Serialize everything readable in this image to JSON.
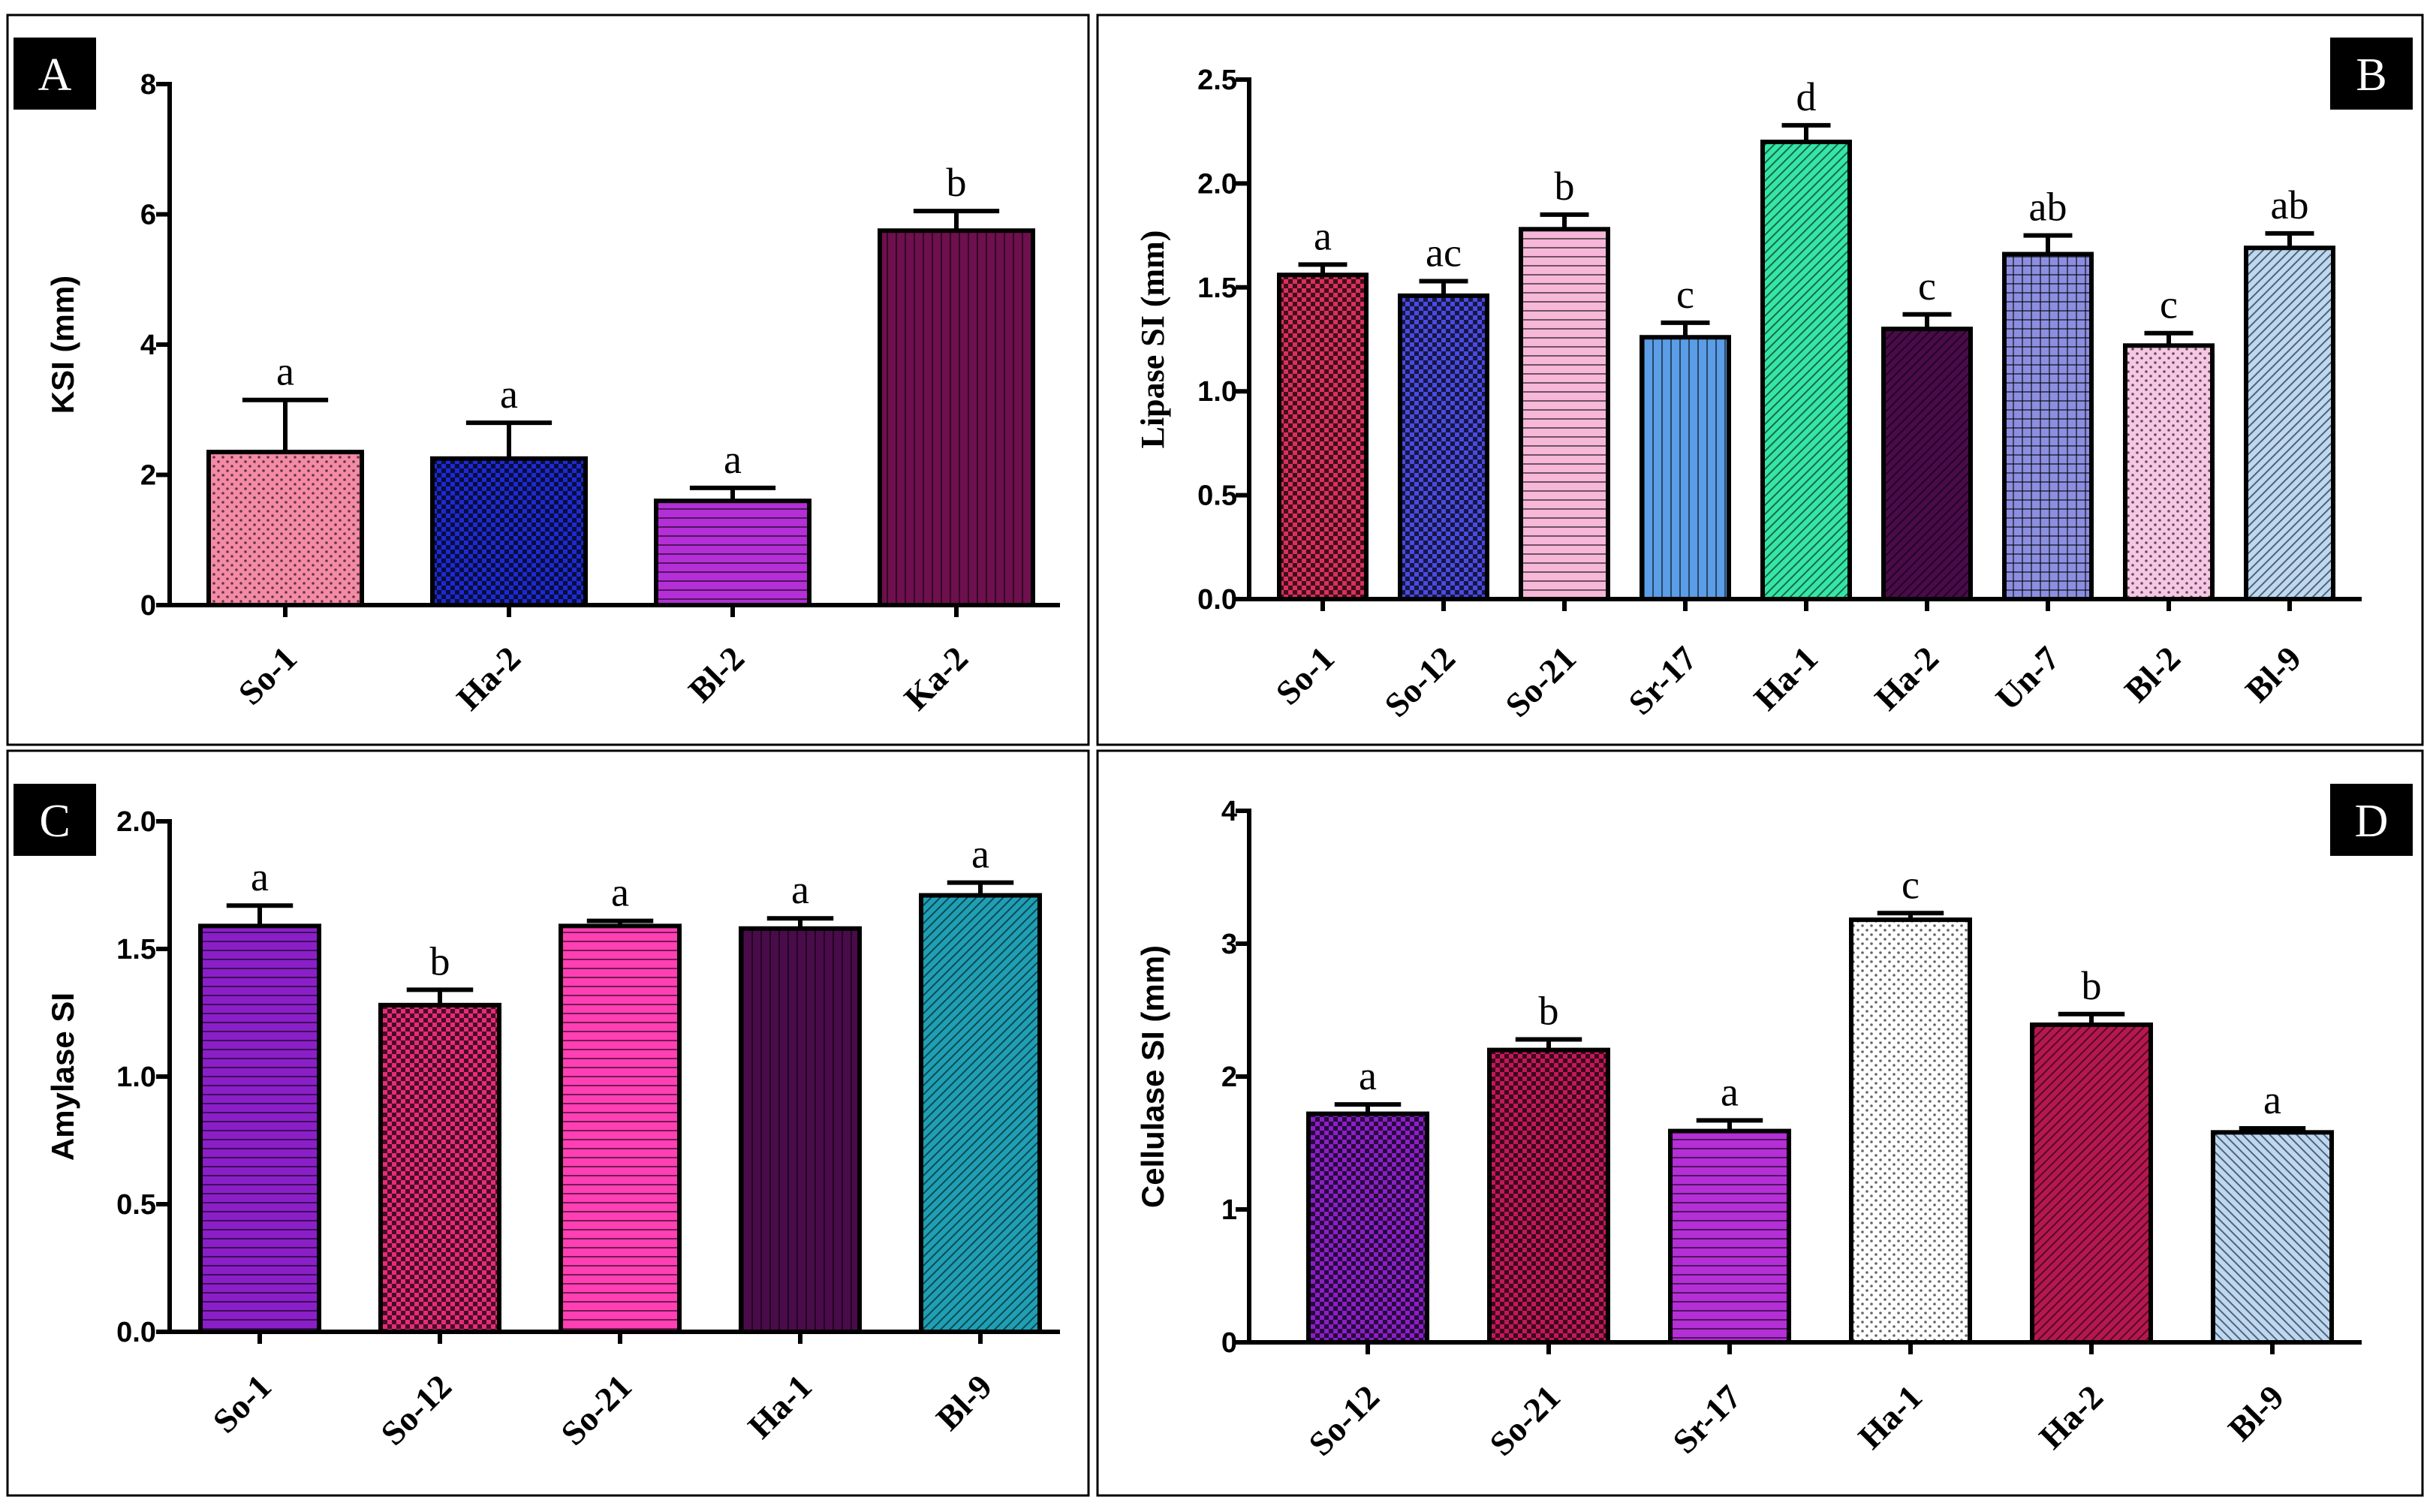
{
  "figure_title": "",
  "colors": {
    "so1_red": "#d8305c",
    "pink_light": "#f48aa6",
    "blue_dark": "#1d2ad0",
    "purple_bright": "#b42fd6",
    "purple_mid": "#8a1fc7",
    "maroon": "#6e0f4e",
    "maroon_dark": "#4a0b4a",
    "rose": "#e82a7a",
    "pink_pale": "#f6b7d8",
    "pink_hot": "#ff3fb4",
    "sky_blue": "#5b9de6",
    "mint": "#35e6a6",
    "lavender": "#8c8fe0",
    "light_blue": "#bcd8f2",
    "teal": "#1f9fb4",
    "white": "#ffffff"
  },
  "chart_data": [
    {
      "panel": "A",
      "type": "bar",
      "title": "",
      "xlabel": "",
      "ylabel": "KSI (mm)",
      "ylim": [
        0,
        8
      ],
      "yticks": [
        "0",
        "2",
        "4",
        "6",
        "8"
      ],
      "categories": [
        "So-1",
        "Ha-2",
        "Bl-2",
        "Ka-2"
      ],
      "values": [
        2.35,
        2.25,
        1.6,
        5.75
      ],
      "errors": [
        0.8,
        0.55,
        0.2,
        0.3
      ],
      "significance": [
        "a",
        "a",
        "a",
        "b"
      ],
      "bar_colors": [
        "#f48aa6",
        "#1d2ad0",
        "#b42fd6",
        "#6e0f4e"
      ]
    },
    {
      "panel": "B",
      "type": "bar",
      "title": "",
      "xlabel": "",
      "ylabel": "Lipase SI (mm)",
      "ylim": [
        0,
        2.5
      ],
      "yticks": [
        "0.0",
        "0.5",
        "1.0",
        "1.5",
        "2.0",
        "2.5"
      ],
      "categories": [
        "So-1",
        "So-12",
        "So-21",
        "Sr-17",
        "Ha-1",
        "Ha-2",
        "Un-7",
        "Bl-2",
        "Bl-9"
      ],
      "values": [
        1.56,
        1.46,
        1.78,
        1.26,
        2.2,
        1.3,
        1.66,
        1.22,
        1.69
      ],
      "errors": [
        0.05,
        0.07,
        0.07,
        0.07,
        0.08,
        0.07,
        0.09,
        0.06,
        0.07
      ],
      "significance": [
        "a",
        "ac",
        "b",
        "c",
        "d",
        "c",
        "ab",
        "c",
        "ab"
      ],
      "bar_colors": [
        "#d8305c",
        "#4a4ae0",
        "#f6b7d8",
        "#5b9de6",
        "#35e6a6",
        "#4a0b4a",
        "#8c8fe0",
        "#f6c7e4",
        "#bcd8f2"
      ]
    },
    {
      "panel": "C",
      "type": "bar",
      "title": "",
      "xlabel": "",
      "ylabel": "Amylase SI",
      "ylim": [
        0,
        2
      ],
      "yticks": [
        "0.0",
        "0.5",
        "1.0",
        "1.5",
        "2.0"
      ],
      "categories": [
        "So-1",
        "So-12",
        "So-21",
        "Ha-1",
        "Bl-9"
      ],
      "values": [
        1.59,
        1.28,
        1.59,
        1.58,
        1.71
      ],
      "errors": [
        0.08,
        0.06,
        0.02,
        0.04,
        0.05
      ],
      "significance": [
        "a",
        "b",
        "a",
        "a",
        "a"
      ],
      "bar_colors": [
        "#8a1fc7",
        "#e82a7a",
        "#ff3fb4",
        "#4a0b4a",
        "#1f9fb4"
      ]
    },
    {
      "panel": "D",
      "type": "bar",
      "title": "",
      "xlabel": "",
      "ylabel": "Cellulase SI (mm)",
      "ylim": [
        0,
        4
      ],
      "yticks": [
        "0",
        "1",
        "2",
        "3",
        "4"
      ],
      "categories": [
        "So-12",
        "So-21",
        "Sr-17",
        "Ha-1",
        "Ha-2",
        "Bl-9"
      ],
      "values": [
        1.72,
        2.2,
        1.59,
        3.18,
        2.39,
        1.58
      ],
      "errors": [
        0.07,
        0.08,
        0.08,
        0.05,
        0.08,
        0.03
      ],
      "significance": [
        "a",
        "b",
        "a",
        "c",
        "b",
        "a"
      ],
      "bar_colors": [
        "#8a1fc7",
        "#c2185b",
        "#b42fd6",
        "#ffffff",
        "#b5174f",
        "#bcd8f2"
      ]
    }
  ]
}
